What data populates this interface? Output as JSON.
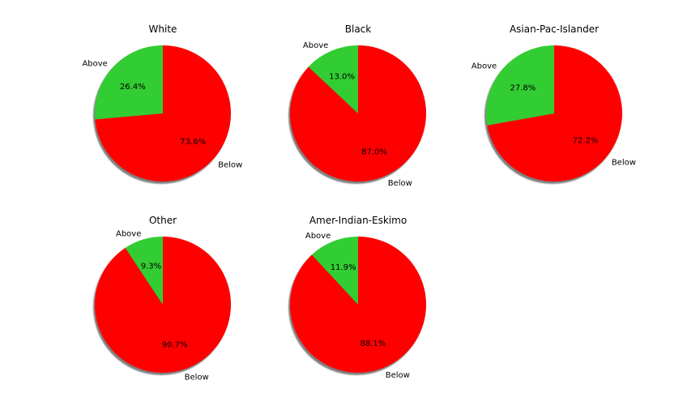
{
  "chart_data": [
    {
      "type": "pie",
      "title": "White",
      "labels": [
        "Below",
        "Above"
      ],
      "values": [
        73.6,
        26.4
      ],
      "pct_labels": [
        "73.6%",
        "26.4%"
      ],
      "colors": [
        "#ff0000",
        "#32cd32"
      ],
      "shadow": true
    },
    {
      "type": "pie",
      "title": "Black",
      "labels": [
        "Below",
        "Above"
      ],
      "values": [
        87.0,
        13.0
      ],
      "pct_labels": [
        "87.0%",
        "13.0%"
      ],
      "colors": [
        "#ff0000",
        "#32cd32"
      ],
      "shadow": true
    },
    {
      "type": "pie",
      "title": "Asian-Pac-Islander",
      "labels": [
        "Below",
        "Above"
      ],
      "values": [
        72.2,
        27.8
      ],
      "pct_labels": [
        "72.2%",
        "27.8%"
      ],
      "colors": [
        "#ff0000",
        "#32cd32"
      ],
      "shadow": true
    },
    {
      "type": "pie",
      "title": "Other",
      "labels": [
        "Below",
        "Above"
      ],
      "values": [
        90.7,
        9.3
      ],
      "pct_labels": [
        "90.7%",
        "9.3%"
      ],
      "colors": [
        "#ff0000",
        "#32cd32"
      ],
      "shadow": true
    },
    {
      "type": "pie",
      "title": "Amer-Indian-Eskimo",
      "labels": [
        "Below",
        "Above"
      ],
      "values": [
        88.1,
        11.9
      ],
      "pct_labels": [
        "88.1%",
        "11.9%"
      ],
      "colors": [
        "#ff0000",
        "#32cd32"
      ],
      "shadow": true
    }
  ]
}
